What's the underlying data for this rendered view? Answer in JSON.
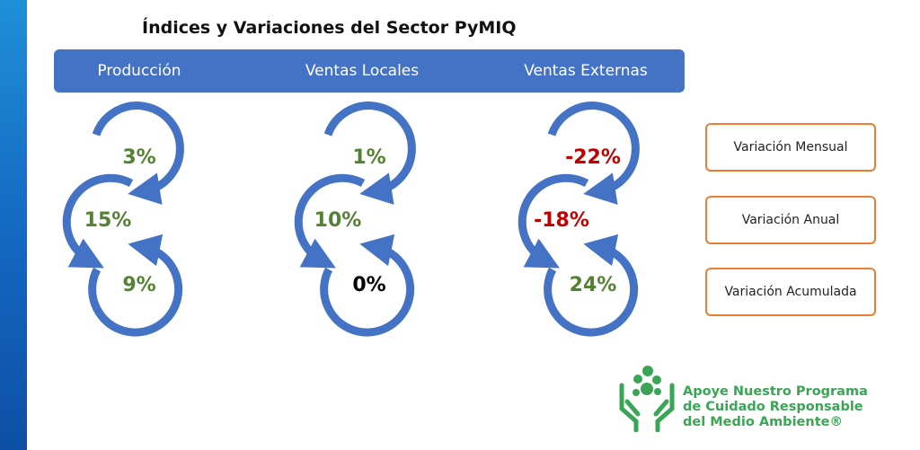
{
  "title": "Índices y Variaciones del Sector PyMIQ",
  "columns": [
    {
      "label": "Producción",
      "values": [
        "3%",
        "15%",
        "9%"
      ]
    },
    {
      "label": "Ventas Locales",
      "values": [
        "1%",
        "10%",
        "0%"
      ]
    },
    {
      "label": "Ventas Externas",
      "values": [
        "-22%",
        "-18%",
        "24%"
      ]
    }
  ],
  "legend": [
    "Variación Mensual",
    "Variación Anual",
    "Variación Acumulada"
  ],
  "logo_text": [
    "Apoye Nuestro Programa",
    "de Cuidado Responsable",
    "del Medio Ambiente®"
  ],
  "colors": {
    "positive": "#548235",
    "negative": "#c00000",
    "neutral": "#000000",
    "arrow": "#4472c4",
    "header": "#4472c4",
    "legend_border": "#ed7d31",
    "logo": "#3aa655"
  }
}
